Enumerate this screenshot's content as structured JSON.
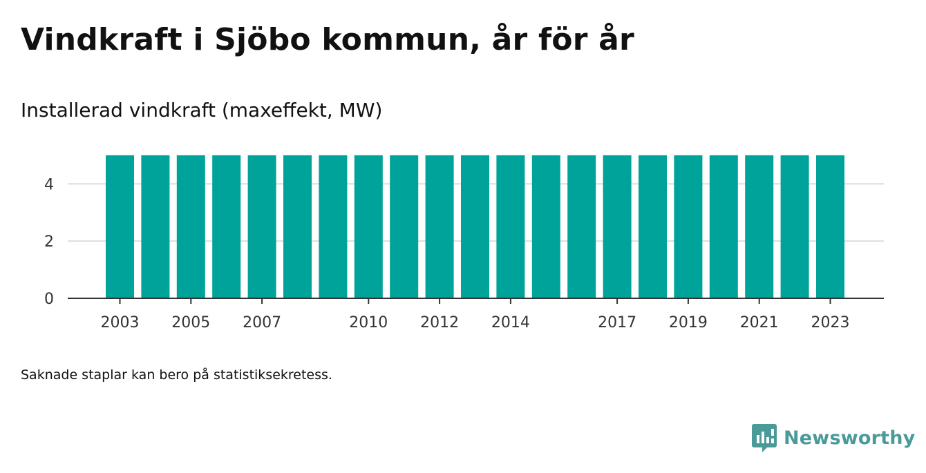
{
  "title": "Vindkraft i Sjöbo kommun, år för år",
  "subtitle": "Installerad vindkraft (maxeffekt, MW)",
  "footnote": "Saknade staplar kan bero på statistiksekretess.",
  "brand": {
    "name": "Newsworthy",
    "icon": "newsworthy-logo-icon",
    "color": "#4a9a99"
  },
  "chart_data": {
    "type": "bar",
    "categories": [
      "2003",
      "2004",
      "2005",
      "2006",
      "2007",
      "2008",
      "2009",
      "2010",
      "2011",
      "2012",
      "2013",
      "2014",
      "2015",
      "2016",
      "2017",
      "2018",
      "2019",
      "2020",
      "2021",
      "2022",
      "2023"
    ],
    "values": [
      5,
      5,
      5,
      5,
      5,
      5,
      5,
      5,
      5,
      5,
      5,
      5,
      5,
      5,
      5,
      5,
      5,
      5,
      5,
      5,
      5
    ],
    "x_tick_labels": [
      "2003",
      "2005",
      "2007",
      "2010",
      "2012",
      "2014",
      "2017",
      "2019",
      "2021",
      "2023"
    ],
    "y_ticks": [
      0,
      2,
      4
    ],
    "ylim": [
      0,
      5.6
    ],
    "title": "Vindkraft i Sjöbo kommun, år för år",
    "subtitle": "Installerad vindkraft (maxeffekt, MW)",
    "xlabel": "",
    "ylabel": "",
    "grid": true,
    "legend": "none",
    "bar_color": "#00a39a",
    "grid_color": "#dddddd",
    "axis_color": "#333333"
  }
}
